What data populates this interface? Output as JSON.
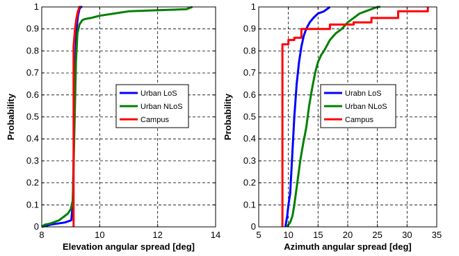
{
  "chart_data": [
    {
      "type": "line",
      "xlabel": "Elevation angular spread [deg]",
      "ylabel": "Probability",
      "xlim": [
        8,
        14
      ],
      "ylim": [
        0,
        1
      ],
      "xticks": [
        "8",
        "10",
        "12",
        "14"
      ],
      "yticks": [
        "0",
        "0.1",
        "0.2",
        "0.3",
        "0.4",
        "0.5",
        "0.6",
        "0.7",
        "0.8",
        "0.9",
        "1"
      ],
      "grid": true,
      "legend_position": "center-right",
      "series": [
        {
          "name": "Urban LoS",
          "color": "#0000ff",
          "x": [
            8.0,
            8.3,
            8.8,
            9.02,
            9.07,
            9.1,
            9.13,
            9.16,
            9.2,
            9.25,
            9.3,
            9.35,
            9.4
          ],
          "y": [
            0.0,
            0.01,
            0.02,
            0.03,
            0.1,
            0.3,
            0.55,
            0.75,
            0.9,
            0.96,
            0.99,
            1.0,
            1.0
          ]
        },
        {
          "name": "Urban NLoS",
          "color": "#008000",
          "x": [
            8.0,
            8.1,
            8.3,
            8.6,
            8.9,
            9.0,
            9.07,
            9.12,
            9.18,
            9.23,
            9.3,
            9.4,
            9.5,
            9.7,
            10.0,
            10.5,
            11.0,
            12.0,
            13.0,
            13.2
          ],
          "y": [
            0.0,
            0.01,
            0.015,
            0.03,
            0.06,
            0.08,
            0.12,
            0.4,
            0.75,
            0.88,
            0.92,
            0.94,
            0.945,
            0.95,
            0.96,
            0.97,
            0.98,
            0.985,
            0.99,
            1.0
          ]
        },
        {
          "name": "Campus",
          "color": "#ff0000",
          "x": [
            9.1,
            9.1,
            9.1,
            9.15,
            9.2,
            9.25,
            9.3,
            9.35
          ],
          "y": [
            0.0,
            0.5,
            0.82,
            0.9,
            0.95,
            0.98,
            1.0,
            1.0
          ]
        }
      ]
    },
    {
      "type": "line",
      "xlabel": "Azimuth angular spread [deg]",
      "ylabel": "Probability",
      "xlim": [
        5,
        35
      ],
      "ylim": [
        0,
        1
      ],
      "xticks": [
        "5",
        "10",
        "15",
        "20",
        "25",
        "30",
        "35"
      ],
      "yticks": [
        "0",
        "0.1",
        "0.2",
        "0.3",
        "0.4",
        "0.5",
        "0.6",
        "0.7",
        "0.8",
        "0.9",
        "1"
      ],
      "grid": true,
      "legend_position": "center-right",
      "series": [
        {
          "name": "Urabn LoS",
          "color": "#0000ff",
          "x": [
            9.5,
            9.8,
            10.0,
            10.3,
            10.6,
            11.0,
            11.4,
            11.8,
            12.2,
            12.6,
            13.0,
            13.6,
            14.2,
            15.0,
            16.0,
            17.0
          ],
          "y": [
            0.0,
            0.05,
            0.1,
            0.15,
            0.3,
            0.5,
            0.65,
            0.75,
            0.82,
            0.87,
            0.9,
            0.93,
            0.95,
            0.97,
            0.98,
            1.0
          ]
        },
        {
          "name": "Urban NLoS",
          "color": "#008000",
          "x": [
            9.8,
            10.0,
            10.3,
            10.7,
            11.0,
            11.5,
            12.0,
            12.5,
            13.0,
            13.5,
            14.0,
            14.5,
            15.0,
            15.5,
            16.0,
            17.0,
            18.0,
            19.0,
            20.0,
            21.0,
            22.0,
            23.0,
            24.0,
            25.0,
            25.5
          ],
          "y": [
            0.0,
            0.01,
            0.02,
            0.05,
            0.1,
            0.2,
            0.3,
            0.38,
            0.45,
            0.55,
            0.63,
            0.7,
            0.75,
            0.78,
            0.8,
            0.85,
            0.88,
            0.9,
            0.93,
            0.95,
            0.97,
            0.98,
            0.99,
            1.0,
            1.0
          ]
        },
        {
          "name": "Campus",
          "color": "#ff0000",
          "x": [
            9.0,
            9.0,
            9.0,
            10.0,
            10.0,
            11.0,
            11.0,
            12.2,
            12.2,
            17.0,
            17.0,
            21.0,
            21.0,
            24.0,
            24.0,
            28.5,
            28.5,
            33.5,
            33.5
          ],
          "y": [
            0.0,
            0.5,
            0.83,
            0.83,
            0.85,
            0.85,
            0.86,
            0.86,
            0.9,
            0.9,
            0.92,
            0.92,
            0.93,
            0.93,
            0.95,
            0.95,
            0.98,
            0.98,
            1.0
          ]
        }
      ]
    }
  ]
}
